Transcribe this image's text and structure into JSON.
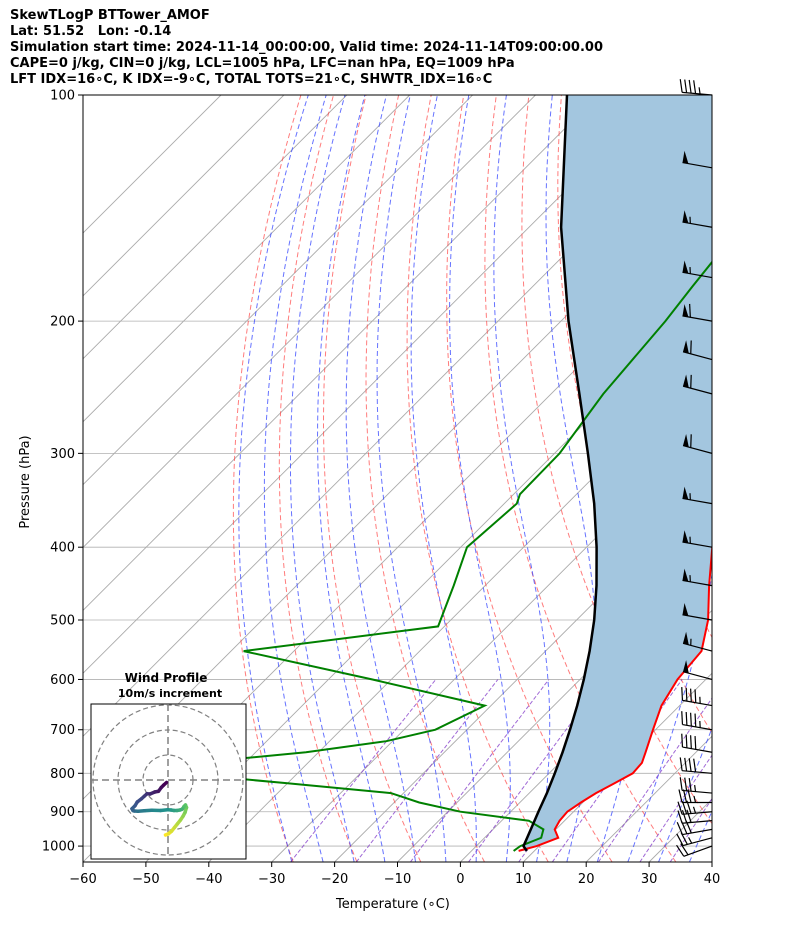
{
  "header": {
    "lines": [
      "SkewTLogP BTTower_AMOF",
      "Lat: 51.52   Lon: -0.14",
      "Simulation start time: 2024-11-14_00:00:00, Valid time: 2024-11-14T09:00:00.00",
      "CAPE=0 j/kg, CIN=0 j/kg, LCL=1005 hPa, LFC=nan hPa, EQ=1009 hPa",
      "LFT IDX=16∘C, K IDX=-9∘C, TOTAL TOTS=21∘C, SHWTR_IDX=16∘C"
    ]
  },
  "chart_data": {
    "type": "line",
    "subtype": "skew-t log-p",
    "xlabel": "Temperature (∘C)",
    "ylabel": "Pressure (hPa)",
    "xlim": [
      -60,
      40
    ],
    "ylim": [
      1050,
      100
    ],
    "y_scale": "log",
    "x_ticks": [
      -60,
      -50,
      -40,
      -30,
      -20,
      -10,
      0,
      10,
      20,
      30,
      40
    ],
    "y_ticks": [
      100,
      200,
      300,
      400,
      500,
      600,
      700,
      800,
      900,
      1000
    ],
    "grid": true,
    "colors": {
      "temperature": "#ff0000",
      "dewpoint": "#008000",
      "parcel": "#000000",
      "cape_fill": "#a3c6df",
      "dry_adiabats": "#ff4444",
      "moist_adiabats": "#3344ff",
      "mixing_ratio": "#8844cc",
      "isotherms": "#aaaaaa"
    },
    "series": [
      {
        "id": "temperature",
        "pressure": [
          1015,
          1000,
          975,
          950,
          925,
          900,
          875,
          850,
          825,
          800,
          775,
          750,
          700,
          650,
          600,
          550,
          500,
          450,
          400,
          350,
          300,
          275,
          250,
          225,
          200,
          190,
          180,
          170,
          160,
          150,
          140,
          130,
          120,
          110,
          100
        ],
        "values": [
          7.5,
          9.6,
          11.7,
          9.8,
          9.2,
          9.0,
          9.7,
          10.6,
          12.0,
          13.3,
          13.1,
          12.0,
          9.6,
          7.1,
          5.5,
          4.8,
          0.9,
          -4.4,
          -10.0,
          -15.0,
          -21.6,
          -24.4,
          -26.9,
          -28.8,
          -28.8,
          -28.0,
          -25.9,
          -23.3,
          -22.0,
          -20.5,
          -19.6,
          -18.8,
          -18.3,
          -16.8,
          -14.4
        ]
      },
      {
        "id": "dewpoint",
        "pressure": [
          1015,
          1000,
          975,
          950,
          925,
          900,
          875,
          850,
          825,
          800,
          775,
          750,
          725,
          700,
          650,
          600,
          550,
          510,
          450,
          400,
          350,
          340,
          300,
          250,
          200,
          180,
          160,
          140,
          130,
          120,
          110,
          100
        ],
        "values": [
          6.7,
          7.0,
          9.0,
          8.0,
          4.3,
          -8.0,
          -16.0,
          -22.0,
          -40.0,
          -58.7,
          -58.0,
          -42.0,
          -31.0,
          -25.0,
          -21.0,
          -43.0,
          -68.0,
          -41.0,
          -45.0,
          -49.0,
          -48.0,
          -49.0,
          -49.2,
          -51.7,
          -53.4,
          -54.6,
          -55.8,
          -59.9,
          -58.1,
          -56.5,
          -55.2,
          -55.1
        ]
      },
      {
        "id": "parcel",
        "pressure": [
          1015,
          1000,
          950,
          900,
          850,
          800,
          750,
          700,
          650,
          600,
          550,
          500,
          450,
          400,
          350,
          300,
          250,
          200,
          150,
          100
        ],
        "values": [
          8.8,
          7.5,
          6.0,
          4.4,
          2.8,
          0.9,
          -1.2,
          -3.6,
          -6.3,
          -9.4,
          -13.0,
          -17.2,
          -22.3,
          -28.4,
          -35.7,
          -44.7,
          -55.5,
          -68.8,
          -84.9,
          -105.0
        ]
      }
    ],
    "wind_barbs": {
      "pressure": [
        1000,
        975,
        950,
        925,
        900,
        875,
        850,
        800,
        750,
        700,
        650,
        600,
        550,
        500,
        450,
        400,
        350,
        300,
        250,
        225,
        200,
        175,
        150,
        125,
        100
      ],
      "speed_kt": [
        20,
        25,
        30,
        30,
        35,
        35,
        35,
        40,
        40,
        45,
        45,
        50,
        55,
        50,
        55,
        55,
        55,
        60,
        60,
        60,
        60,
        55,
        55,
        50,
        45
      ],
      "direction_deg": [
        250,
        255,
        260,
        265,
        265,
        270,
        275,
        275,
        280,
        280,
        280,
        285,
        285,
        280,
        280,
        280,
        280,
        285,
        285,
        285,
        280,
        280,
        280,
        280,
        275
      ]
    },
    "inset": {
      "title": "Wind Profile",
      "subtitle": "10m/s increment",
      "hodograph_u": [
        -1.0,
        0.2,
        1.4,
        2.6,
        3.8,
        5.0,
        6.0,
        6.8,
        7.4,
        7.0,
        6.4,
        5.9,
        5.6,
        4.8,
        3.6,
        2.4,
        1.2,
        -0.1,
        -3.0,
        -6.5,
        -9.5,
        -12.0,
        -13.5,
        -14.0,
        -14.4,
        -13.2,
        -12.3,
        -10.6,
        -9.5,
        -8.4,
        -7.2,
        -5.3,
        -3.8,
        -2.7,
        -1.7,
        -0.6
      ],
      "hodograph_v": [
        -22.0,
        -21.5,
        -20.5,
        -19.0,
        -17.5,
        -16.0,
        -14.5,
        -13.0,
        -11.0,
        -10.0,
        -10.6,
        -11.4,
        -11.7,
        -12.0,
        -12.2,
        -12.2,
        -12.0,
        -11.9,
        -12.2,
        -12.1,
        -12.3,
        -12.5,
        -12.4,
        -12.2,
        -11.5,
        -10.3,
        -8.8,
        -7.5,
        -6.5,
        -5.5,
        -5.6,
        -4.8,
        -4.5,
        -3.0,
        -2.0,
        -1.0
      ]
    }
  }
}
